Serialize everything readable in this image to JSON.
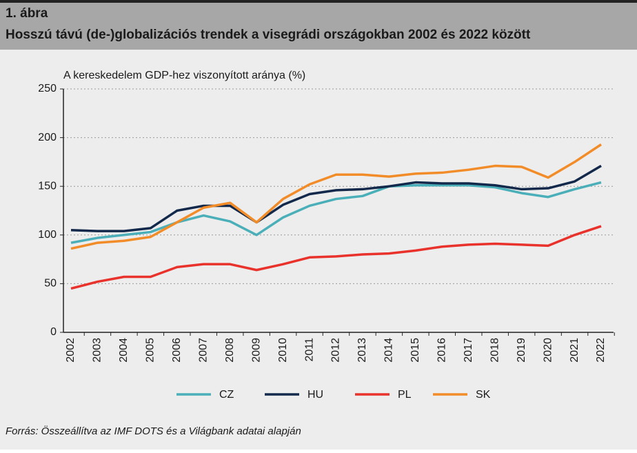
{
  "chart_data": {
    "type": "line",
    "figure_label": "1. ábra",
    "title": "Hosszú távú (de-)globalizációs trendek a visegrádi országokban 2002 és 2022 között",
    "y_label": "A kereskedelem GDP-hez viszonyított aránya (%)",
    "categories": [
      "2002",
      "2003",
      "2004",
      "2005",
      "2006",
      "2007",
      "2008",
      "2009",
      "2010",
      "2011",
      "2012",
      "2013",
      "2014",
      "2015",
      "2016",
      "2017",
      "2018",
      "2019",
      "2020",
      "2021",
      "2022"
    ],
    "series": [
      {
        "name": "CZ",
        "color": "#4aafb8",
        "values": [
          92,
          97,
          100,
          103,
          113,
          120,
          114,
          100,
          118,
          130,
          137,
          140,
          150,
          151,
          151,
          151,
          149,
          143,
          139,
          147,
          154
        ]
      },
      {
        "name": "HU",
        "color": "#13294b",
        "values": [
          105,
          104,
          104,
          107,
          125,
          130,
          130,
          113,
          131,
          142,
          146,
          147,
          150,
          154,
          153,
          153,
          151,
          147,
          148,
          155,
          171
        ]
      },
      {
        "name": "PL",
        "color": "#e8322b",
        "values": [
          45,
          52,
          57,
          57,
          67,
          70,
          70,
          64,
          70,
          77,
          78,
          80,
          81,
          84,
          88,
          90,
          91,
          90,
          89,
          100,
          109
        ]
      },
      {
        "name": "SK",
        "color": "#f28c28",
        "values": [
          86,
          92,
          94,
          98,
          113,
          128,
          133,
          113,
          137,
          152,
          162,
          162,
          160,
          163,
          164,
          167,
          171,
          170,
          159,
          175,
          193
        ]
      }
    ],
    "ylim": [
      0,
      250
    ],
    "yticks": [
      0,
      50,
      100,
      150,
      200,
      250
    ],
    "grid": true,
    "source": "Forrás: Összeállítva az IMF DOTS és a Világbank adatai alapján"
  }
}
